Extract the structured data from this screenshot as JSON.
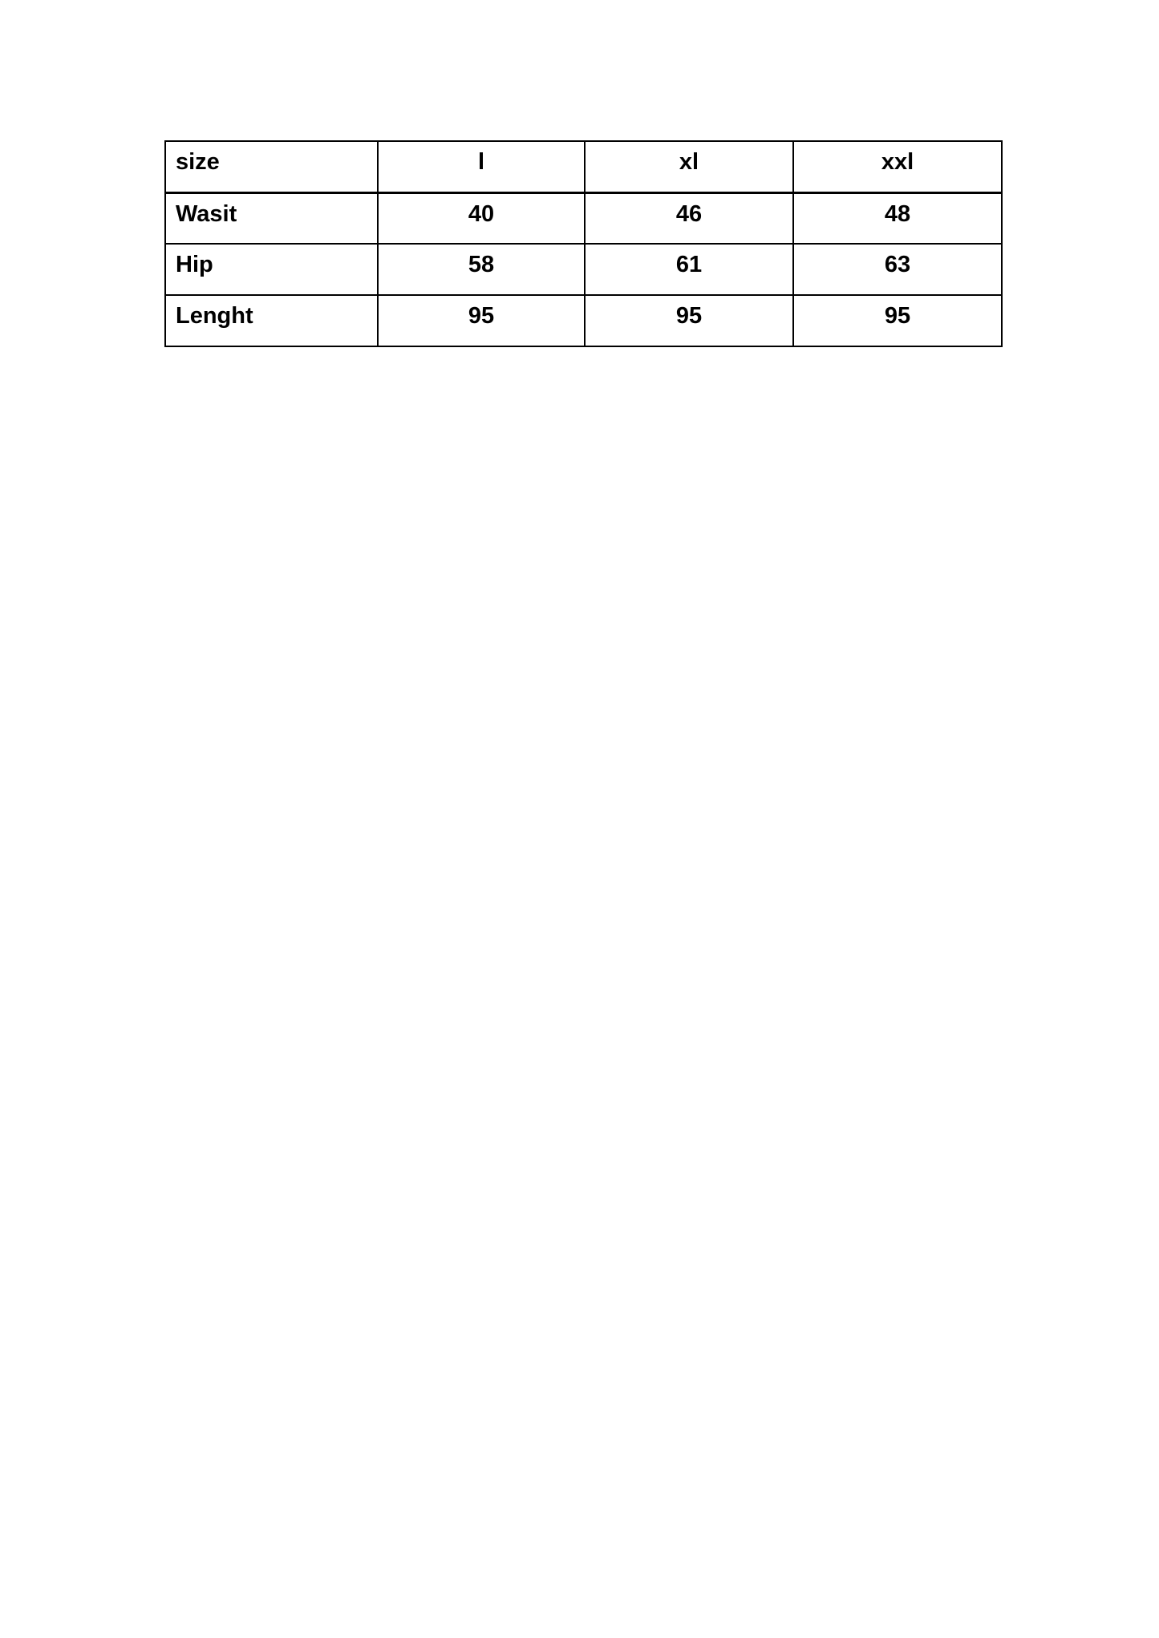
{
  "page": {
    "background_color": "#ffffff",
    "text_color": "#000000",
    "table_border_color": "#000000"
  },
  "size_table": {
    "columns": [
      "size",
      "l",
      "xl",
      "xxl"
    ],
    "rows": [
      {
        "label": "Wasit",
        "values": [
          "40",
          "46",
          "48"
        ]
      },
      {
        "label": "Hip",
        "values": [
          "58",
          "61",
          "63"
        ]
      },
      {
        "label": "Lenght",
        "values": [
          "95",
          "95",
          "95"
        ]
      }
    ]
  }
}
